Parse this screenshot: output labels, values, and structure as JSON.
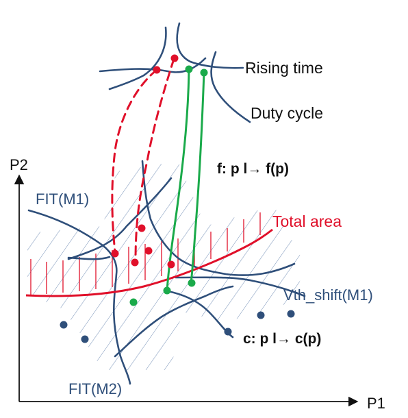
{
  "labels": {
    "rising_time": "Rising time",
    "duty_cycle": "Duty cycle",
    "f_mapping": "f: p l→ f(p)",
    "p2_axis": "P2",
    "p1_axis": "P1",
    "fit_m1": "FIT(M1)",
    "total_area": "Total area",
    "vth_shift": "Vth_shift(M1)",
    "c_mapping": "c: p l→ c(p)",
    "fit_m2": "FIT(M2)"
  },
  "colors": {
    "constraint_curve": "#2f4f7a",
    "objective_curve": "#e0102a",
    "feasible_mapping": "#1aaa4a",
    "infeasible_mapping": "#e0102a",
    "axis": "#111111",
    "hatch": "#6b8bb3"
  }
}
